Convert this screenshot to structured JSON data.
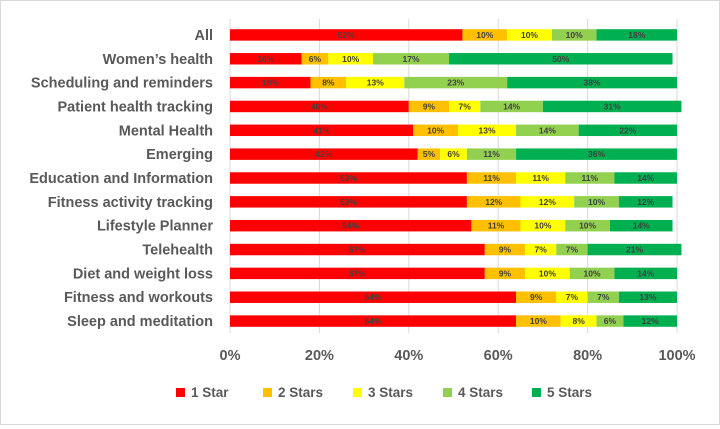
{
  "chart_data": {
    "type": "bar",
    "orientation": "horizontal",
    "stacked": "100%",
    "categories": [
      "All",
      "Women’s health",
      "Scheduling and reminders",
      "Patient health tracking",
      "Mental Health",
      "Emerging",
      "Education and Information",
      "Fitness activity tracking",
      "Lifestyle Planner",
      "Telehealth",
      "Diet and weight loss",
      "Fitness and workouts",
      "Sleep and meditation"
    ],
    "series": [
      {
        "name": "1 Star",
        "color": "#ff0000",
        "values": [
          52,
          16,
          18,
          40,
          41,
          42,
          53,
          53,
          54,
          57,
          57,
          64,
          64
        ],
        "labels": [
          "52%",
          "16%",
          "18%",
          "40%",
          "41%",
          "42%",
          "53%",
          "53%",
          "54%",
          "57%",
          "57%",
          "64%",
          "64%"
        ]
      },
      {
        "name": "2 Stars",
        "color": "#ffc000",
        "values": [
          10,
          6,
          8,
          9,
          10,
          5,
          11,
          12,
          11,
          9,
          9,
          9,
          10
        ],
        "labels": [
          "10%",
          "6%",
          "8%",
          "9%",
          "10%",
          "5%",
          "11%",
          "12%",
          "11%",
          "9%",
          "9%",
          "9%",
          "10%"
        ]
      },
      {
        "name": "3 Stars",
        "color": "#ffff00",
        "values": [
          10,
          10,
          13,
          7,
          13,
          6,
          11,
          12,
          10,
          7,
          10,
          7,
          8
        ],
        "labels": [
          "10%",
          "10%",
          "13%",
          "7%",
          "13%",
          "6%",
          "11%",
          "12%",
          "10%",
          "7%",
          "10%",
          "7%",
          "8%"
        ]
      },
      {
        "name": "4 Stars",
        "color": "#92d050",
        "values": [
          10,
          17,
          23,
          14,
          14,
          11,
          11,
          10,
          10,
          7,
          10,
          7,
          6
        ],
        "labels": [
          "10%",
          "17%",
          "23%",
          "14%",
          "14%",
          "11%",
          "11%",
          "10%",
          "10%",
          "7%",
          "10%",
          "7%",
          "6%"
        ]
      },
      {
        "name": "5 Stars",
        "color": "#00b050",
        "values": [
          18,
          50,
          38,
          31,
          22,
          36,
          14,
          12,
          14,
          21,
          14,
          13,
          12
        ],
        "labels": [
          "18%",
          "50%",
          "38%",
          "31%",
          "22%",
          "36%",
          "14%",
          "12%",
          "14%",
          "21%",
          "14%",
          "13%",
          "12%"
        ]
      }
    ],
    "x_ticks": [
      "0%",
      "20%",
      "40%",
      "60%",
      "80%",
      "100%"
    ],
    "xlim": [
      0,
      100
    ],
    "title": "",
    "xlabel": "",
    "ylabel": "",
    "grid": true,
    "legend": "bottom"
  }
}
